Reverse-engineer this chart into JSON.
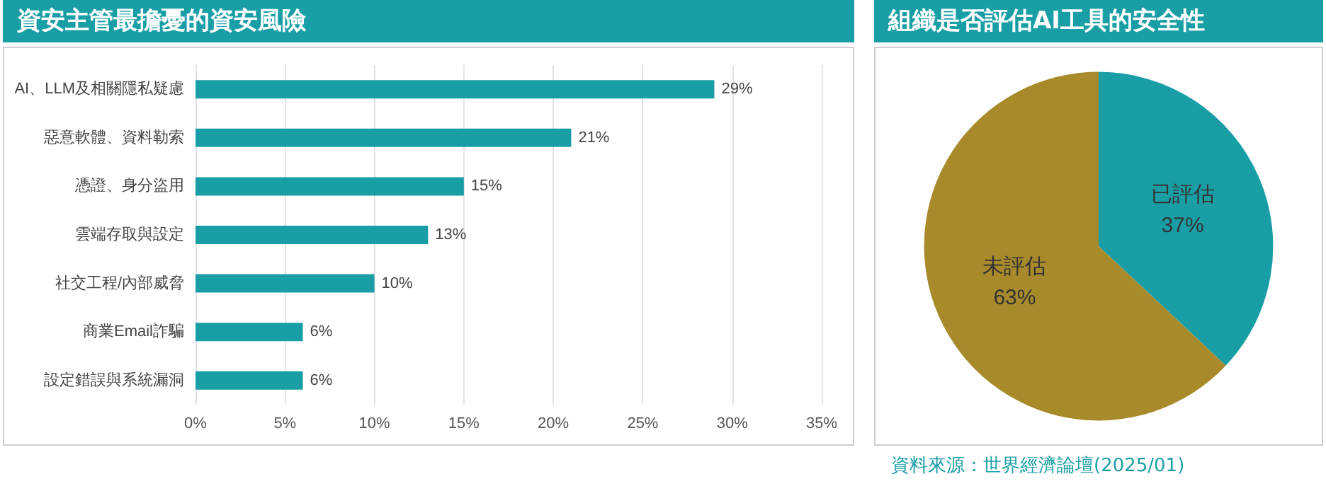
{
  "chart_data": [
    {
      "type": "bar",
      "title": "資安主管最擔憂的資安風險",
      "orientation": "horizontal",
      "categories": [
        "AI、LLM及相關隱私疑慮",
        "惡意軟體、資料勒索",
        "憑證、身分盜用",
        "雲端存取與設定",
        "社交工程/內部威脅",
        "商業Email詐騙",
        "設定錯誤與系統漏洞"
      ],
      "values": [
        29,
        21,
        15,
        13,
        10,
        6,
        6
      ],
      "value_labels": [
        "29%",
        "21%",
        "15%",
        "13%",
        "10%",
        "6%",
        "6%"
      ],
      "color": "#1a9ea5",
      "xlim": [
        0,
        35
      ],
      "xticks": [
        {
          "value": 0,
          "label": "0%"
        },
        {
          "value": 5,
          "label": "5%"
        },
        {
          "value": 10,
          "label": "10%"
        },
        {
          "value": 15,
          "label": "15%"
        },
        {
          "value": 20,
          "label": "20%"
        },
        {
          "value": 25,
          "label": "25%"
        },
        {
          "value": 30,
          "label": "30%"
        },
        {
          "value": 35,
          "label": "35%"
        }
      ],
      "grid": "x",
      "legend": false
    },
    {
      "type": "pie",
      "title": "組織是否評估AI工具的安全性",
      "categories": [
        "已評估",
        "未評估"
      ],
      "values": [
        37,
        63
      ],
      "value_labels": [
        "37%",
        "63%"
      ],
      "colors": [
        "#1a9ea5",
        "#a88a2b"
      ],
      "legend": false,
      "annotations": [
        "資料來源：世界經濟論壇(2025/01)"
      ]
    }
  ]
}
